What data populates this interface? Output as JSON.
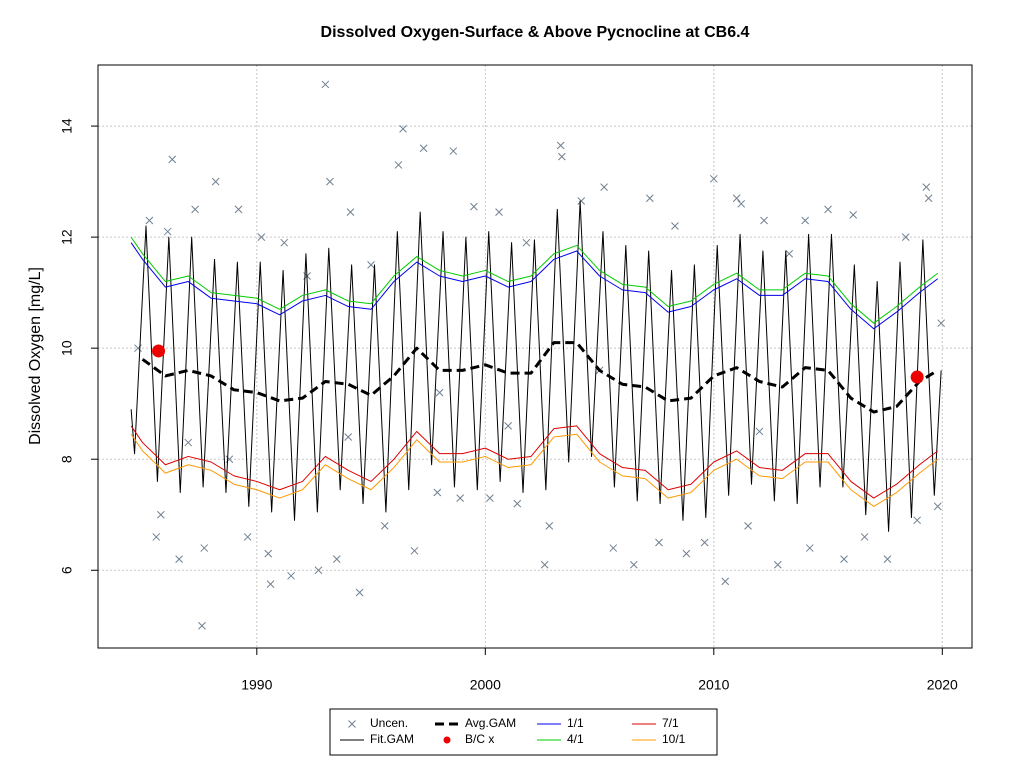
{
  "chart_data": {
    "type": "line",
    "title": "Dissolved Oxygen-Surface & Above Pycnocline at CB6.4",
    "y_label": "Dissolved Oxygen [mg/L]",
    "xlim": [
      1983.05,
      2021.3
    ],
    "ylim": [
      4.6,
      15.1
    ],
    "xticks": [
      1990,
      2000,
      2010,
      2020
    ],
    "yticks": [
      6,
      8,
      10,
      12,
      14
    ],
    "grid": true,
    "legend_position": "bottom",
    "series": [
      {
        "name": "Uncen.",
        "color": "#708090",
        "marker": "x",
        "x": [
          1984.8,
          1985.3,
          1985.6,
          1985.8,
          1986.3,
          1986.1,
          1986.6,
          1987.0,
          1987.6,
          1987.3,
          1988.2,
          1987.7,
          1988.8,
          1989.2,
          1989.6,
          1990.2,
          1990.5,
          1990.6,
          1991.5,
          1991.2,
          1992.2,
          1992.7,
          1993.0,
          1993.2,
          1993.5,
          1994.1,
          1994.5,
          1995.0,
          1995.6,
          1996.2,
          1996.4,
          1996.9,
          1997.3,
          1997.9,
          1998.6,
          1998.9,
          1999.5,
          2000.2,
          2000.6,
          2001.4,
          2001.8,
          2002.6,
          2003.3,
          2003.35,
          2002.8,
          2004.2,
          2005.2,
          2005.6,
          2006.5,
          2007.2,
          2007.6,
          2008.3,
          2008.8,
          2009.6,
          2010.0,
          2010.5,
          2011.0,
          2011.2,
          2011.5,
          2012.2,
          2012.8,
          2013.3,
          2014.0,
          2014.2,
          2015.0,
          2015.7,
          2016.1,
          2016.6,
          2017.6,
          2018.4,
          2018.9,
          2019.3,
          2019.4,
          2019.8,
          2019.95,
          2001.0,
          2005.0,
          1998.0,
          1994.0,
          2012.0
        ],
        "values": [
          10.0,
          12.3,
          6.6,
          7.0,
          13.4,
          12.1,
          6.2,
          8.3,
          5.0,
          12.5,
          13.0,
          6.4,
          8.0,
          12.5,
          6.6,
          12.0,
          6.3,
          5.75,
          5.9,
          11.9,
          11.3,
          6.0,
          14.75,
          13.0,
          6.2,
          12.45,
          5.6,
          11.5,
          6.8,
          13.3,
          13.95,
          6.35,
          13.6,
          7.4,
          13.55,
          7.3,
          12.55,
          7.3,
          12.45,
          7.2,
          11.9,
          6.1,
          13.65,
          13.45,
          6.8,
          12.65,
          12.9,
          6.4,
          6.1,
          12.7,
          6.5,
          12.2,
          6.3,
          6.5,
          13.05,
          5.8,
          12.7,
          12.6,
          6.8,
          12.3,
          6.1,
          11.7,
          12.3,
          6.4,
          12.5,
          6.2,
          12.4,
          6.6,
          6.2,
          12.0,
          6.9,
          12.9,
          12.7,
          7.15,
          10.45,
          8.6,
          9.6,
          9.2,
          8.4,
          8.5
        ]
      },
      {
        "name": "Fit.GAM",
        "color": "#000000",
        "marker": "line",
        "x": [
          1984.5,
          1984.65,
          1985.15,
          1985.65,
          1986.15,
          1986.65,
          1987.15,
          1987.65,
          1988.15,
          1988.65,
          1989.15,
          1989.65,
          1990.15,
          1990.65,
          1991.15,
          1991.65,
          1992.15,
          1992.65,
          1993.15,
          1993.65,
          1994.15,
          1994.65,
          1995.15,
          1995.65,
          1996.15,
          1996.65,
          1997.15,
          1997.65,
          1998.15,
          1998.65,
          1999.15,
          1999.65,
          2000.15,
          2000.65,
          2001.15,
          2001.65,
          2002.15,
          2002.65,
          2003.15,
          2003.65,
          2004.15,
          2004.65,
          2005.15,
          2005.65,
          2006.15,
          2006.65,
          2007.15,
          2007.65,
          2008.15,
          2008.65,
          2009.15,
          2009.65,
          2010.15,
          2010.65,
          2011.15,
          2011.65,
          2012.15,
          2012.65,
          2013.15,
          2013.65,
          2014.15,
          2014.65,
          2015.15,
          2015.65,
          2016.15,
          2016.65,
          2017.15,
          2017.65,
          2018.15,
          2018.65,
          2019.15,
          2019.65,
          2019.95
        ],
        "values": [
          8.9,
          8.1,
          12.2,
          7.6,
          12.0,
          7.4,
          12.0,
          7.5,
          11.6,
          7.4,
          11.55,
          7.15,
          11.55,
          7.05,
          11.4,
          6.9,
          11.7,
          7.05,
          11.8,
          7.45,
          11.5,
          7.2,
          11.5,
          7.05,
          12.1,
          7.45,
          12.45,
          7.9,
          12.1,
          7.5,
          12.0,
          7.45,
          12.1,
          7.6,
          11.9,
          7.4,
          11.95,
          7.45,
          12.5,
          7.95,
          12.65,
          8.05,
          12.1,
          7.5,
          11.85,
          7.25,
          11.75,
          7.2,
          11.4,
          6.9,
          11.5,
          6.95,
          11.85,
          7.35,
          12.05,
          7.55,
          11.75,
          7.25,
          11.75,
          7.2,
          12.05,
          7.5,
          12.05,
          7.5,
          11.5,
          7.0,
          11.2,
          6.7,
          11.55,
          6.95,
          11.95,
          7.35,
          9.6
        ]
      },
      {
        "name": "Avg.GAM",
        "color": "#000000",
        "marker": "dashed",
        "x": [
          1985,
          1986,
          1987,
          1988,
          1989,
          1990,
          1991,
          1992,
          1993,
          1994,
          1995,
          1996,
          1997,
          1998,
          1999,
          2000,
          2001,
          2002,
          2003,
          2004,
          2005,
          2006,
          2007,
          2008,
          2009,
          2010,
          2011,
          2012,
          2013,
          2014,
          2015,
          2016,
          2017,
          2018,
          2019,
          2019.8
        ],
        "values": [
          9.8,
          9.5,
          9.6,
          9.5,
          9.25,
          9.2,
          9.05,
          9.1,
          9.4,
          9.35,
          9.15,
          9.5,
          10.0,
          9.6,
          9.6,
          9.7,
          9.55,
          9.55,
          10.1,
          10.1,
          9.6,
          9.35,
          9.3,
          9.05,
          9.1,
          9.5,
          9.65,
          9.4,
          9.3,
          9.65,
          9.6,
          9.1,
          8.85,
          8.95,
          9.4,
          9.6
        ]
      },
      {
        "name": "B/C x",
        "color": "#ee0000",
        "marker": "dot",
        "x": [
          1985.7,
          2018.9
        ],
        "values": [
          9.95,
          9.48
        ]
      },
      {
        "name": "1/1",
        "color": "#0000ee",
        "marker": "line",
        "x": [
          1984.5,
          1985,
          1986,
          1987,
          1988,
          1989,
          1990,
          1991,
          1992,
          1993,
          1994,
          1995,
          1996,
          1997,
          1998,
          1999,
          2000,
          2001,
          2002,
          2003,
          2004,
          2005,
          2006,
          2007,
          2008,
          2009,
          2010,
          2011,
          2012,
          2013,
          2014,
          2015,
          2016,
          2017,
          2018,
          2019,
          2019.8
        ],
        "values": [
          11.9,
          11.6,
          11.1,
          11.2,
          10.9,
          10.85,
          10.8,
          10.6,
          10.85,
          10.95,
          10.75,
          10.7,
          11.2,
          11.55,
          11.3,
          11.2,
          11.3,
          11.1,
          11.2,
          11.6,
          11.75,
          11.3,
          11.05,
          11.0,
          10.65,
          10.75,
          11.05,
          11.25,
          10.95,
          10.95,
          11.25,
          11.2,
          10.7,
          10.35,
          10.65,
          11.0,
          11.25
        ]
      },
      {
        "name": "4/1",
        "color": "#00cc00",
        "marker": "line",
        "x": [
          1984.5,
          1985,
          1986,
          1987,
          1988,
          1989,
          1990,
          1991,
          1992,
          1993,
          1994,
          1995,
          1996,
          1997,
          1998,
          1999,
          2000,
          2001,
          2002,
          2003,
          2004,
          2005,
          2006,
          2007,
          2008,
          2009,
          2010,
          2011,
          2012,
          2013,
          2014,
          2015,
          2016,
          2017,
          2018,
          2019,
          2019.8
        ],
        "values": [
          12.0,
          11.7,
          11.2,
          11.3,
          11.0,
          10.95,
          10.9,
          10.7,
          10.95,
          11.05,
          10.85,
          10.8,
          11.3,
          11.65,
          11.4,
          11.3,
          11.4,
          11.2,
          11.3,
          11.7,
          11.85,
          11.4,
          11.15,
          11.1,
          10.75,
          10.85,
          11.15,
          11.35,
          11.05,
          11.05,
          11.35,
          11.3,
          10.8,
          10.45,
          10.75,
          11.1,
          11.35
        ]
      },
      {
        "name": "7/1",
        "color": "#dd0000",
        "marker": "line",
        "x": [
          1984.5,
          1985,
          1986,
          1987,
          1988,
          1989,
          1990,
          1991,
          1992,
          1993,
          1994,
          1995,
          1996,
          1997,
          1998,
          1999,
          2000,
          2001,
          2002,
          2003,
          2004,
          2005,
          2006,
          2007,
          2008,
          2009,
          2010,
          2011,
          2012,
          2013,
          2014,
          2015,
          2016,
          2017,
          2018,
          2019,
          2019.8
        ],
        "values": [
          8.6,
          8.3,
          7.9,
          8.05,
          7.95,
          7.7,
          7.6,
          7.45,
          7.6,
          8.05,
          7.8,
          7.6,
          8.0,
          8.5,
          8.1,
          8.1,
          8.2,
          8.0,
          8.05,
          8.55,
          8.6,
          8.1,
          7.85,
          7.8,
          7.45,
          7.55,
          7.95,
          8.15,
          7.85,
          7.8,
          8.1,
          8.1,
          7.6,
          7.3,
          7.55,
          7.9,
          8.15
        ]
      },
      {
        "name": "10/1",
        "color": "#ff9900",
        "marker": "line",
        "x": [
          1984.5,
          1985,
          1986,
          1987,
          1988,
          1989,
          1990,
          1991,
          1992,
          1993,
          1994,
          1995,
          1996,
          1997,
          1998,
          1999,
          2000,
          2001,
          2002,
          2003,
          2004,
          2005,
          2006,
          2007,
          2008,
          2009,
          2010,
          2011,
          2012,
          2013,
          2014,
          2015,
          2016,
          2017,
          2018,
          2019,
          2019.8
        ],
        "values": [
          8.45,
          8.15,
          7.75,
          7.9,
          7.8,
          7.55,
          7.45,
          7.3,
          7.45,
          7.9,
          7.65,
          7.45,
          7.85,
          8.35,
          7.95,
          7.95,
          8.05,
          7.85,
          7.9,
          8.4,
          8.45,
          7.95,
          7.7,
          7.65,
          7.3,
          7.4,
          7.8,
          8.0,
          7.7,
          7.65,
          7.95,
          7.95,
          7.45,
          7.15,
          7.4,
          7.75,
          8.0
        ]
      }
    ]
  }
}
